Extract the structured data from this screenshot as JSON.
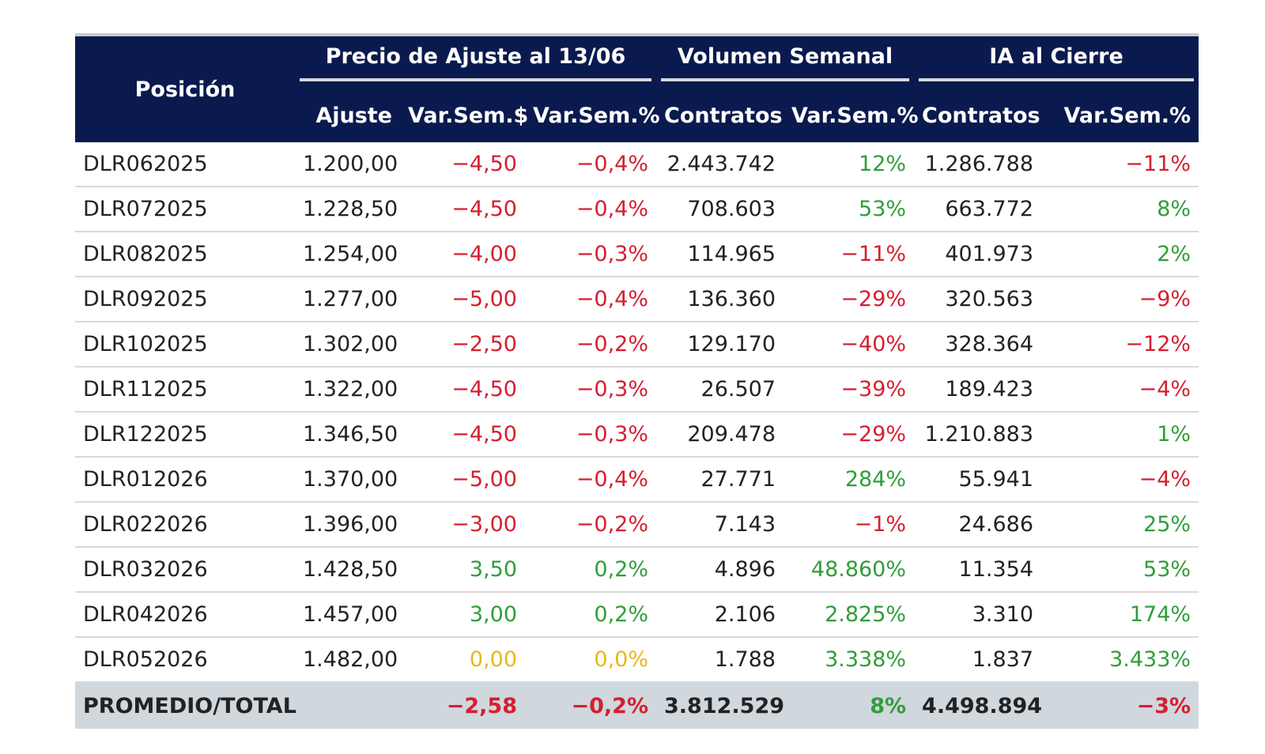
{
  "header": {
    "position_label": "Posición",
    "groups": [
      {
        "label": "Precio de Ajuste al 13/06"
      },
      {
        "label": "Volumen Semanal"
      },
      {
        "label": "IA al Cierre"
      }
    ],
    "subcolumns": [
      "Ajuste",
      "Var.Sem.$",
      "Var.Sem.%",
      "Contratos",
      "Var.Sem.%",
      "Contratos",
      "Var.Sem.%"
    ]
  },
  "rows": [
    {
      "pos": "DLR062025",
      "ajuste": "1.200,00",
      "var_usd": "−4,50",
      "var_pct": "−0,4%",
      "vol": "2.443.742",
      "vol_var": "12%",
      "ia": "1.286.788",
      "ia_var": "−11%",
      "c": [
        "neg",
        "neg",
        "pos",
        "neg"
      ]
    },
    {
      "pos": "DLR072025",
      "ajuste": "1.228,50",
      "var_usd": "−4,50",
      "var_pct": "−0,4%",
      "vol": "708.603",
      "vol_var": "53%",
      "ia": "663.772",
      "ia_var": "8%",
      "c": [
        "neg",
        "neg",
        "pos",
        "pos"
      ]
    },
    {
      "pos": "DLR082025",
      "ajuste": "1.254,00",
      "var_usd": "−4,00",
      "var_pct": "−0,3%",
      "vol": "114.965",
      "vol_var": "−11%",
      "ia": "401.973",
      "ia_var": "2%",
      "c": [
        "neg",
        "neg",
        "neg",
        "pos"
      ]
    },
    {
      "pos": "DLR092025",
      "ajuste": "1.277,00",
      "var_usd": "−5,00",
      "var_pct": "−0,4%",
      "vol": "136.360",
      "vol_var": "−29%",
      "ia": "320.563",
      "ia_var": "−9%",
      "c": [
        "neg",
        "neg",
        "neg",
        "neg"
      ]
    },
    {
      "pos": "DLR102025",
      "ajuste": "1.302,00",
      "var_usd": "−2,50",
      "var_pct": "−0,2%",
      "vol": "129.170",
      "vol_var": "−40%",
      "ia": "328.364",
      "ia_var": "−12%",
      "c": [
        "neg",
        "neg",
        "neg",
        "neg"
      ]
    },
    {
      "pos": "DLR112025",
      "ajuste": "1.322,00",
      "var_usd": "−4,50",
      "var_pct": "−0,3%",
      "vol": "26.507",
      "vol_var": "−39%",
      "ia": "189.423",
      "ia_var": "−4%",
      "c": [
        "neg",
        "neg",
        "neg",
        "neg"
      ]
    },
    {
      "pos": "DLR122025",
      "ajuste": "1.346,50",
      "var_usd": "−4,50",
      "var_pct": "−0,3%",
      "vol": "209.478",
      "vol_var": "−29%",
      "ia": "1.210.883",
      "ia_var": "1%",
      "c": [
        "neg",
        "neg",
        "neg",
        "pos"
      ]
    },
    {
      "pos": "DLR012026",
      "ajuste": "1.370,00",
      "var_usd": "−5,00",
      "var_pct": "−0,4%",
      "vol": "27.771",
      "vol_var": "284%",
      "ia": "55.941",
      "ia_var": "−4%",
      "c": [
        "neg",
        "neg",
        "pos",
        "neg"
      ]
    },
    {
      "pos": "DLR022026",
      "ajuste": "1.396,00",
      "var_usd": "−3,00",
      "var_pct": "−0,2%",
      "vol": "7.143",
      "vol_var": "−1%",
      "ia": "24.686",
      "ia_var": "25%",
      "c": [
        "neg",
        "neg",
        "neg",
        "pos"
      ]
    },
    {
      "pos": "DLR032026",
      "ajuste": "1.428,50",
      "var_usd": "3,50",
      "var_pct": "0,2%",
      "vol": "4.896",
      "vol_var": "48.860%",
      "ia": "11.354",
      "ia_var": "53%",
      "c": [
        "pos",
        "pos",
        "pos",
        "pos"
      ]
    },
    {
      "pos": "DLR042026",
      "ajuste": "1.457,00",
      "var_usd": "3,00",
      "var_pct": "0,2%",
      "vol": "2.106",
      "vol_var": "2.825%",
      "ia": "3.310",
      "ia_var": "174%",
      "c": [
        "pos",
        "pos",
        "pos",
        "pos"
      ]
    },
    {
      "pos": "DLR052026",
      "ajuste": "1.482,00",
      "var_usd": "0,00",
      "var_pct": "0,0%",
      "vol": "1.788",
      "vol_var": "3.338%",
      "ia": "1.837",
      "ia_var": "3.433%",
      "c": [
        "zero",
        "zero",
        "pos",
        "pos"
      ]
    }
  ],
  "total": {
    "label": "PROMEDIO/TOTAL",
    "ajuste": "",
    "var_usd": "−2,58",
    "var_pct": "−0,2%",
    "vol": "3.812.529",
    "vol_var": "8%",
    "ia": "4.498.894",
    "ia_var": "−3%",
    "c": [
      "neg",
      "neg",
      "pos",
      "neg"
    ]
  },
  "colors": {
    "header_bg": "#0b1a4e",
    "negative": "#d32030",
    "positive": "#2f9e3a",
    "zero": "#e8b817",
    "total_bg": "#d0d7dd"
  }
}
